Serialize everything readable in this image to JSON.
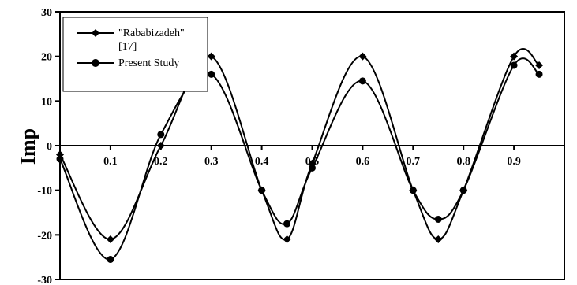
{
  "chart_data": {
    "type": "line",
    "ylabel": "Imp",
    "xlabel": "",
    "xlim": [
      0,
      1.0
    ],
    "ylim": [
      -30,
      30
    ],
    "x_ticks": [
      "0.1",
      "0.2",
      "0.3",
      "0.4",
      "0.5",
      "0.6",
      "0.7",
      "0.8",
      "0.9"
    ],
    "y_ticks": [
      "30",
      "20",
      "10",
      "0",
      "-10",
      "-20",
      "-30"
    ],
    "grid": false,
    "legend_position": "top-left",
    "series": [
      {
        "name": "\"Rababizadeh\" [17]",
        "marker": "diamond",
        "x": [
          0,
          0.1,
          0.2,
          0.3,
          0.4,
          0.45,
          0.5,
          0.6,
          0.7,
          0.75,
          0.8,
          0.9,
          0.95
        ],
        "y": [
          -2,
          -21,
          0,
          20,
          -10,
          -21,
          -4,
          20,
          -10,
          -21,
          -10,
          20,
          18
        ]
      },
      {
        "name": "Present Study",
        "marker": "circle",
        "x": [
          0,
          0.1,
          0.2,
          0.3,
          0.4,
          0.45,
          0.5,
          0.6,
          0.7,
          0.75,
          0.8,
          0.9,
          0.95
        ],
        "y": [
          -3,
          -25.5,
          2.5,
          16,
          -10,
          -17.5,
          -5,
          14.5,
          -10,
          -16.5,
          -10,
          18,
          16
        ]
      }
    ]
  }
}
